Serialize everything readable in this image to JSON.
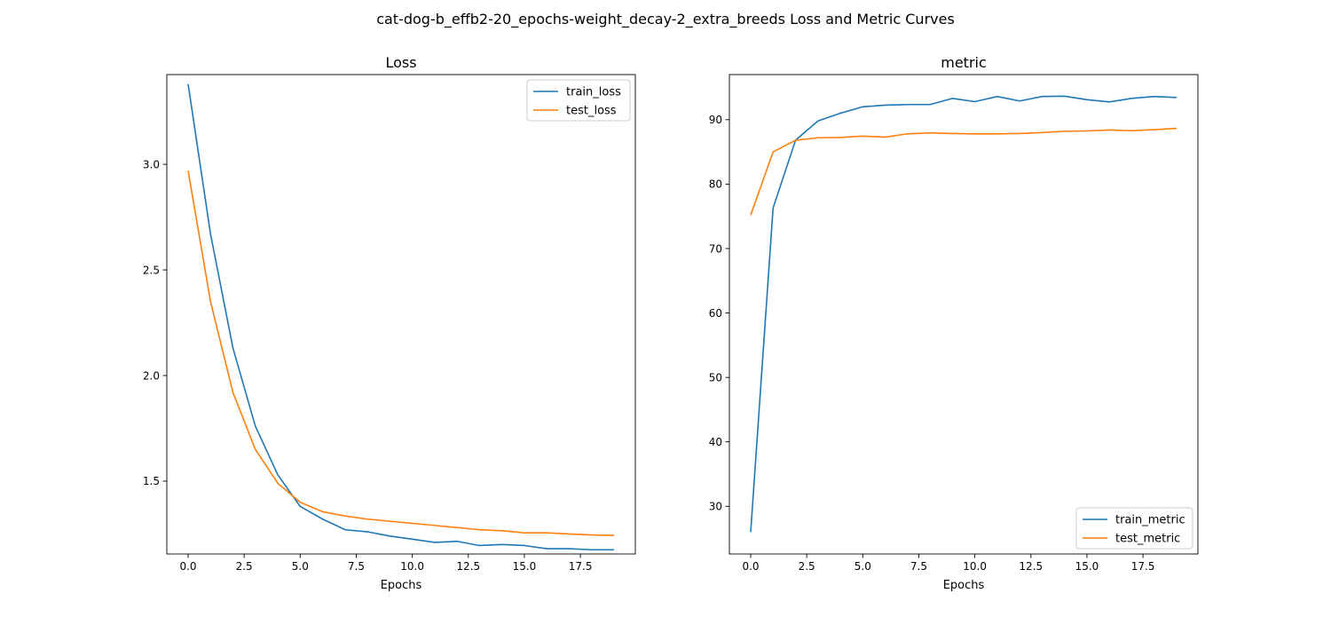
{
  "figure": {
    "suptitle": "cat-dog-b_effb2-20_epochs-weight_decay-2_extra_breeds Loss and Metric Curves"
  },
  "colors": {
    "series1": "#1f77b4",
    "series2": "#ff7f0e",
    "axes": "#000000",
    "background": "#ffffff",
    "legend_border": "#cccccc"
  },
  "chart_data": [
    {
      "type": "line",
      "title": "Loss",
      "xlabel": "Epochs",
      "ylabel": "",
      "xlim": [
        -0.95,
        19.95
      ],
      "ylim": [
        1.155,
        3.425
      ],
      "xticks": [
        0.0,
        2.5,
        5.0,
        7.5,
        10.0,
        12.5,
        15.0,
        17.5
      ],
      "xtick_labels": [
        "0.0",
        "2.5",
        "5.0",
        "7.5",
        "10.0",
        "12.5",
        "15.0",
        "17.5"
      ],
      "yticks": [
        1.5,
        2.0,
        2.5,
        3.0
      ],
      "ytick_labels": [
        "1.5",
        "2.0",
        "2.5",
        "3.0"
      ],
      "grid": false,
      "legend": "upper right",
      "x": [
        0,
        1,
        2,
        3,
        4,
        5,
        6,
        7,
        8,
        9,
        10,
        11,
        12,
        13,
        14,
        15,
        16,
        17,
        18,
        19
      ],
      "series": [
        {
          "name": "train_loss",
          "values": [
            3.38,
            2.67,
            2.13,
            1.76,
            1.53,
            1.38,
            1.32,
            1.27,
            1.26,
            1.24,
            1.225,
            1.21,
            1.215,
            1.195,
            1.2,
            1.195,
            1.18,
            1.18,
            1.175,
            1.175
          ]
        },
        {
          "name": "test_loss",
          "values": [
            2.97,
            2.35,
            1.92,
            1.65,
            1.49,
            1.4,
            1.355,
            1.335,
            1.32,
            1.31,
            1.3,
            1.29,
            1.28,
            1.27,
            1.265,
            1.255,
            1.255,
            1.25,
            1.245,
            1.243
          ]
        }
      ]
    },
    {
      "type": "line",
      "title": "metric",
      "xlabel": "Epochs",
      "ylabel": "",
      "xlim": [
        -0.95,
        19.95
      ],
      "ylim": [
        22.6,
        97.0
      ],
      "xticks": [
        0.0,
        2.5,
        5.0,
        7.5,
        10.0,
        12.5,
        15.0,
        17.5
      ],
      "xtick_labels": [
        "0.0",
        "2.5",
        "5.0",
        "7.5",
        "10.0",
        "12.5",
        "15.0",
        "17.5"
      ],
      "yticks": [
        30,
        40,
        50,
        60,
        70,
        80,
        90
      ],
      "ytick_labels": [
        "30",
        "40",
        "50",
        "60",
        "70",
        "80",
        "90"
      ],
      "grid": false,
      "legend": "lower right",
      "x": [
        0,
        1,
        2,
        3,
        4,
        5,
        6,
        7,
        8,
        9,
        10,
        11,
        12,
        13,
        14,
        15,
        16,
        17,
        18,
        19
      ],
      "series": [
        {
          "name": "train_metric",
          "values": [
            26.0,
            76.3,
            86.8,
            89.8,
            91.0,
            92.0,
            92.25,
            92.35,
            92.35,
            93.3,
            92.8,
            93.6,
            92.9,
            93.6,
            93.65,
            93.1,
            92.75,
            93.3,
            93.6,
            93.45
          ]
        },
        {
          "name": "test_metric",
          "values": [
            75.2,
            85.0,
            86.8,
            87.2,
            87.25,
            87.45,
            87.3,
            87.8,
            87.95,
            87.85,
            87.8,
            87.8,
            87.85,
            88.0,
            88.2,
            88.25,
            88.4,
            88.3,
            88.45,
            88.65
          ]
        }
      ]
    }
  ]
}
